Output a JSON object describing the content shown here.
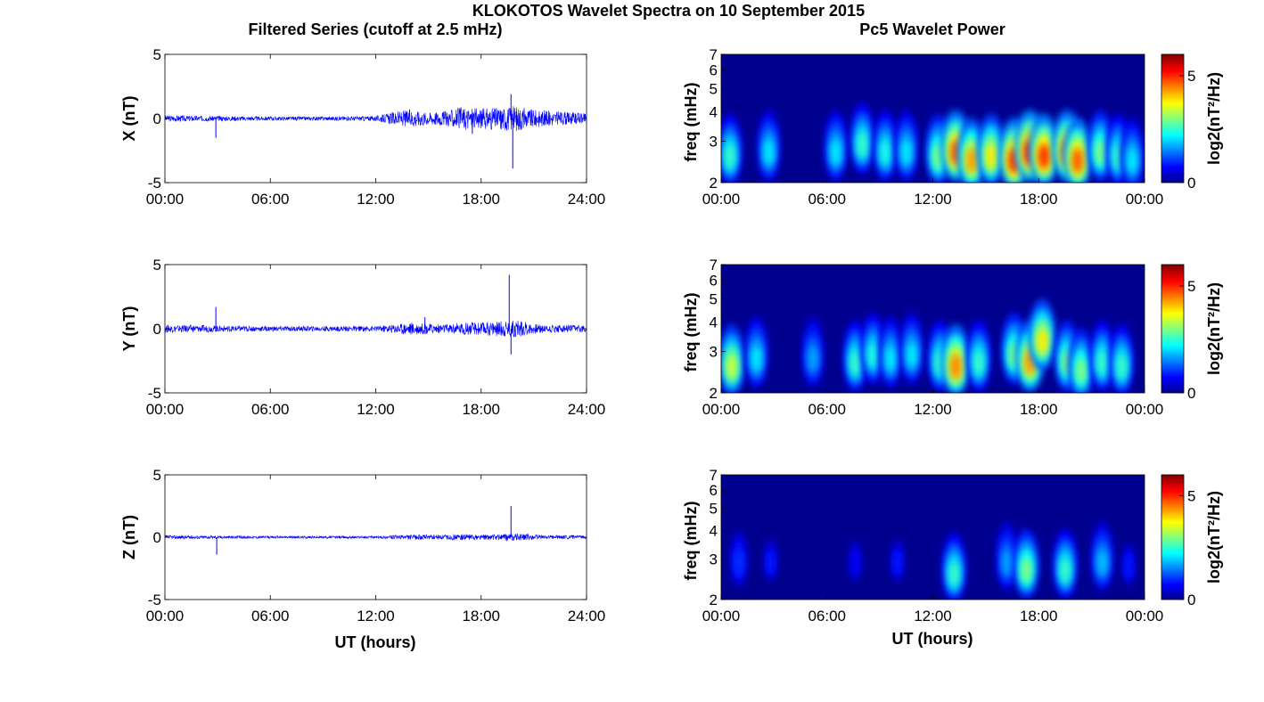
{
  "figure": {
    "title": "KLOKOTOS Wavelet Spectra on 10 September 2015",
    "left_column_title": "Filtered Series (cutoff at 2.5 mHz)",
    "right_column_title": "Pc5 Wavelet Power",
    "xlabel": "UT (hours)"
  },
  "colors": {
    "trace": "#0000ff",
    "colormap": [
      "#00008f",
      "#0000ff",
      "#00ffff",
      "#ffff00",
      "#ff0000",
      "#800000"
    ]
  },
  "chart_data": [
    {
      "type": "line",
      "panel": "filtered-x",
      "ylabel": "X (nT)",
      "ylim": [
        -5,
        5
      ],
      "yticks": [
        "5",
        "0",
        "-5"
      ],
      "xlim": [
        0,
        24
      ],
      "xticks": [
        "00:00",
        "06:00",
        "12:00",
        "18:00",
        "24:00"
      ],
      "grid": false,
      "envelope": {
        "t": [
          0,
          3,
          6,
          9,
          12,
          13,
          14,
          15,
          16,
          17,
          18,
          19,
          20,
          21,
          22,
          23,
          24
        ],
        "amplitude": [
          0.25,
          0.2,
          0.15,
          0.15,
          0.2,
          0.5,
          0.7,
          0.5,
          0.6,
          0.9,
          0.8,
          0.9,
          1.0,
          0.7,
          0.6,
          0.5,
          0.4
        ]
      },
      "spikes": [
        {
          "t": 2.9,
          "value": -1.5
        },
        {
          "t": 19.7,
          "value": 1.9
        },
        {
          "t": 19.8,
          "value": -3.9
        },
        {
          "t": 17.5,
          "value": -1.2
        }
      ]
    },
    {
      "type": "line",
      "panel": "filtered-y",
      "ylabel": "Y (nT)",
      "ylim": [
        -5,
        5
      ],
      "yticks": [
        "5",
        "0",
        "-5"
      ],
      "xlim": [
        0,
        24
      ],
      "xticks": [
        "00:00",
        "06:00",
        "12:00",
        "18:00",
        "24:00"
      ],
      "grid": false,
      "envelope": {
        "t": [
          0,
          3,
          6,
          9,
          12,
          13,
          14,
          15,
          16,
          17,
          18,
          19,
          20,
          21,
          22,
          23,
          24
        ],
        "amplitude": [
          0.3,
          0.25,
          0.2,
          0.2,
          0.2,
          0.35,
          0.5,
          0.4,
          0.35,
          0.5,
          0.5,
          0.6,
          0.7,
          0.4,
          0.3,
          0.3,
          0.25
        ]
      },
      "spikes": [
        {
          "t": 2.9,
          "value": 1.7
        },
        {
          "t": 19.6,
          "value": 4.2
        },
        {
          "t": 19.7,
          "value": -2.0
        },
        {
          "t": 14.8,
          "value": 0.9
        }
      ]
    },
    {
      "type": "line",
      "panel": "filtered-z",
      "ylabel": "Z (nT)",
      "ylim": [
        -5,
        5
      ],
      "yticks": [
        "5",
        "0",
        "-5"
      ],
      "xlim": [
        0,
        24
      ],
      "xticks": [
        "00:00",
        "06:00",
        "12:00",
        "18:00",
        "24:00"
      ],
      "grid": false,
      "envelope": {
        "t": [
          0,
          3,
          6,
          9,
          12,
          13,
          14,
          15,
          16,
          17,
          18,
          19,
          20,
          21,
          22,
          23,
          24
        ],
        "amplitude": [
          0.15,
          0.12,
          0.1,
          0.1,
          0.1,
          0.15,
          0.2,
          0.2,
          0.2,
          0.25,
          0.2,
          0.25,
          0.3,
          0.2,
          0.15,
          0.15,
          0.12
        ]
      },
      "spikes": [
        {
          "t": 2.95,
          "value": -1.4
        },
        {
          "t": 19.7,
          "value": 2.5
        }
      ]
    },
    {
      "type": "heatmap",
      "panel": "wavelet-x",
      "ylabel": "freq (mHz)",
      "ylim": [
        2,
        7
      ],
      "yscale": "log",
      "yticks": [
        "2",
        "3",
        "4",
        "5",
        "6",
        "7"
      ],
      "xlim": [
        0,
        24
      ],
      "xticks": [
        "00:00",
        "06:00",
        "12:00",
        "18:00",
        "00:00"
      ],
      "colorbar": {
        "label": "log2(nT²/Hz)",
        "ticks": [
          "0",
          "5"
        ],
        "range": [
          0,
          6
        ]
      },
      "blobs": [
        {
          "t": 0.5,
          "f": 2.5,
          "power": 3.0
        },
        {
          "t": 2.7,
          "f": 2.6,
          "power": 2.5
        },
        {
          "t": 6.5,
          "f": 2.6,
          "power": 2.5
        },
        {
          "t": 8.0,
          "f": 2.8,
          "power": 3.0
        },
        {
          "t": 9.3,
          "f": 2.6,
          "power": 2.8
        },
        {
          "t": 10.5,
          "f": 2.6,
          "power": 2.5
        },
        {
          "t": 12.3,
          "f": 2.5,
          "power": 3.5
        },
        {
          "t": 13.3,
          "f": 2.6,
          "power": 5.5
        },
        {
          "t": 14.2,
          "f": 2.4,
          "power": 5.0
        },
        {
          "t": 15.3,
          "f": 2.5,
          "power": 4.5
        },
        {
          "t": 16.6,
          "f": 2.4,
          "power": 5.8
        },
        {
          "t": 17.5,
          "f": 2.6,
          "power": 6.0
        },
        {
          "t": 18.3,
          "f": 2.5,
          "power": 5.8
        },
        {
          "t": 19.6,
          "f": 2.6,
          "power": 5.5
        },
        {
          "t": 20.2,
          "f": 2.4,
          "power": 5.5
        },
        {
          "t": 21.5,
          "f": 2.6,
          "power": 3.5
        },
        {
          "t": 22.5,
          "f": 2.5,
          "power": 3.0
        },
        {
          "t": 23.3,
          "f": 2.4,
          "power": 2.5
        }
      ]
    },
    {
      "type": "heatmap",
      "panel": "wavelet-y",
      "ylabel": "freq (mHz)",
      "ylim": [
        2,
        7
      ],
      "yscale": "log",
      "yticks": [
        "2",
        "3",
        "4",
        "5",
        "6",
        "7"
      ],
      "xlim": [
        0,
        24
      ],
      "xticks": [
        "00:00",
        "06:00",
        "12:00",
        "18:00",
        "00:00"
      ],
      "colorbar": {
        "label": "log2(nT²/Hz)",
        "ticks": [
          "0",
          "5"
        ],
        "range": [
          0,
          6
        ]
      },
      "blobs": [
        {
          "t": 0.6,
          "f": 2.5,
          "power": 4.0
        },
        {
          "t": 2.0,
          "f": 2.7,
          "power": 2.5
        },
        {
          "t": 5.2,
          "f": 2.7,
          "power": 2.0
        },
        {
          "t": 7.6,
          "f": 2.6,
          "power": 3.0
        },
        {
          "t": 8.6,
          "f": 2.8,
          "power": 2.8
        },
        {
          "t": 9.6,
          "f": 2.7,
          "power": 2.5
        },
        {
          "t": 10.8,
          "f": 2.8,
          "power": 2.5
        },
        {
          "t": 12.4,
          "f": 2.6,
          "power": 3.0
        },
        {
          "t": 13.3,
          "f": 2.5,
          "power": 5.2
        },
        {
          "t": 14.6,
          "f": 2.6,
          "power": 3.0
        },
        {
          "t": 16.6,
          "f": 2.8,
          "power": 3.5
        },
        {
          "t": 17.5,
          "f": 2.6,
          "power": 5.0
        },
        {
          "t": 18.2,
          "f": 3.2,
          "power": 4.5
        },
        {
          "t": 19.6,
          "f": 2.6,
          "power": 3.5
        },
        {
          "t": 20.4,
          "f": 2.4,
          "power": 3.5
        },
        {
          "t": 21.6,
          "f": 2.6,
          "power": 3.0
        },
        {
          "t": 22.7,
          "f": 2.5,
          "power": 3.0
        }
      ]
    },
    {
      "type": "heatmap",
      "panel": "wavelet-z",
      "ylabel": "freq (mHz)",
      "ylim": [
        2,
        7
      ],
      "yscale": "log",
      "yticks": [
        "2",
        "3",
        "4",
        "5",
        "6",
        "7"
      ],
      "xlim": [
        0,
        24
      ],
      "xticks": [
        "00:00",
        "06:00",
        "12:00",
        "18:00",
        "00:00"
      ],
      "colorbar": {
        "label": "log2(nT²/Hz)",
        "ticks": [
          "0",
          "5"
        ],
        "range": [
          0,
          6
        ]
      },
      "blobs": [
        {
          "t": 1.0,
          "f": 2.8,
          "power": 1.2
        },
        {
          "t": 2.8,
          "f": 2.8,
          "power": 1.0
        },
        {
          "t": 7.6,
          "f": 2.8,
          "power": 0.8
        },
        {
          "t": 10.0,
          "f": 2.8,
          "power": 1.0
        },
        {
          "t": 13.2,
          "f": 2.5,
          "power": 3.0
        },
        {
          "t": 16.2,
          "f": 2.8,
          "power": 2.0
        },
        {
          "t": 17.3,
          "f": 2.6,
          "power": 3.5
        },
        {
          "t": 19.5,
          "f": 2.6,
          "power": 3.0
        },
        {
          "t": 21.6,
          "f": 2.8,
          "power": 2.2
        },
        {
          "t": 23.1,
          "f": 2.7,
          "power": 1.0
        }
      ]
    }
  ]
}
